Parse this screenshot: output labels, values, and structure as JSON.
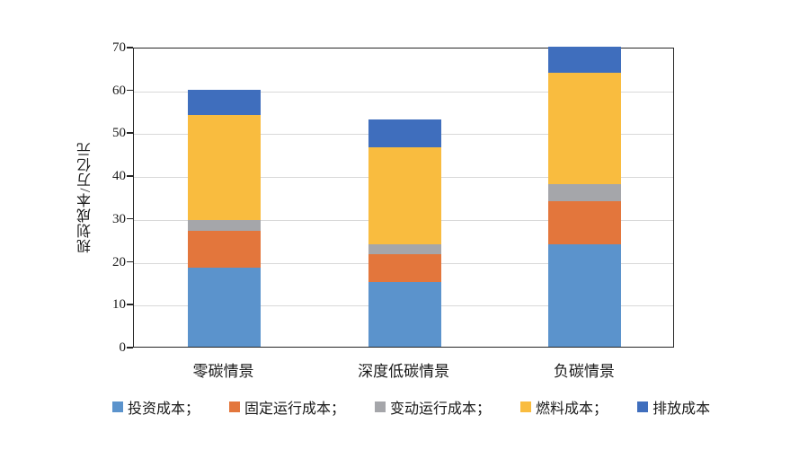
{
  "figure": {
    "background": "#ffffff",
    "plot_border_color": "#262626",
    "gridline_color": "#d9d9d9"
  },
  "chart_data": {
    "type": "bar",
    "stacked": true,
    "title": "",
    "xlabel": "",
    "ylabel": "规划成本/万亿元",
    "ylim": [
      0,
      70
    ],
    "ytick_step": 10,
    "yticks": [
      0,
      10,
      20,
      30,
      40,
      50,
      60,
      70
    ],
    "grid": true,
    "legend_position": "bottom",
    "categories": [
      "零碳情景",
      "深度低碳情景",
      "负碳情景"
    ],
    "series": [
      {
        "key": "investment",
        "name": "投资成本",
        "color": "#5B93CC",
        "values": [
          18.5,
          15.0,
          24.0
        ]
      },
      {
        "key": "fixed-om",
        "name": "固定运行成本",
        "color": "#E3763C",
        "values": [
          8.5,
          6.5,
          10.0
        ]
      },
      {
        "key": "variable-om",
        "name": "变动运行成本",
        "color": "#A5A6AA",
        "values": [
          2.5,
          2.5,
          4.0
        ]
      },
      {
        "key": "fuel",
        "name": "燃料成本",
        "color": "#F9BC3F",
        "values": [
          24.5,
          22.5,
          26.0
        ]
      },
      {
        "key": "emission",
        "name": "排放成本",
        "color": "#3F6EBD",
        "values": [
          6.0,
          6.5,
          6.0
        ]
      }
    ],
    "totals": [
      60,
      53,
      70
    ]
  },
  "legend": {
    "items": [
      {
        "key": "investment",
        "label": "投资成本；",
        "color": "#5B93CC"
      },
      {
        "key": "fixed-om",
        "label": "固定运行成本；",
        "color": "#E3763C"
      },
      {
        "key": "variable-om",
        "label": "变动运行成本；",
        "color": "#A5A6AA"
      },
      {
        "key": "fuel",
        "label": "燃料成本；",
        "color": "#F9BC3F"
      },
      {
        "key": "emission",
        "label": "排放成本",
        "color": "#3F6EBD"
      }
    ]
  }
}
